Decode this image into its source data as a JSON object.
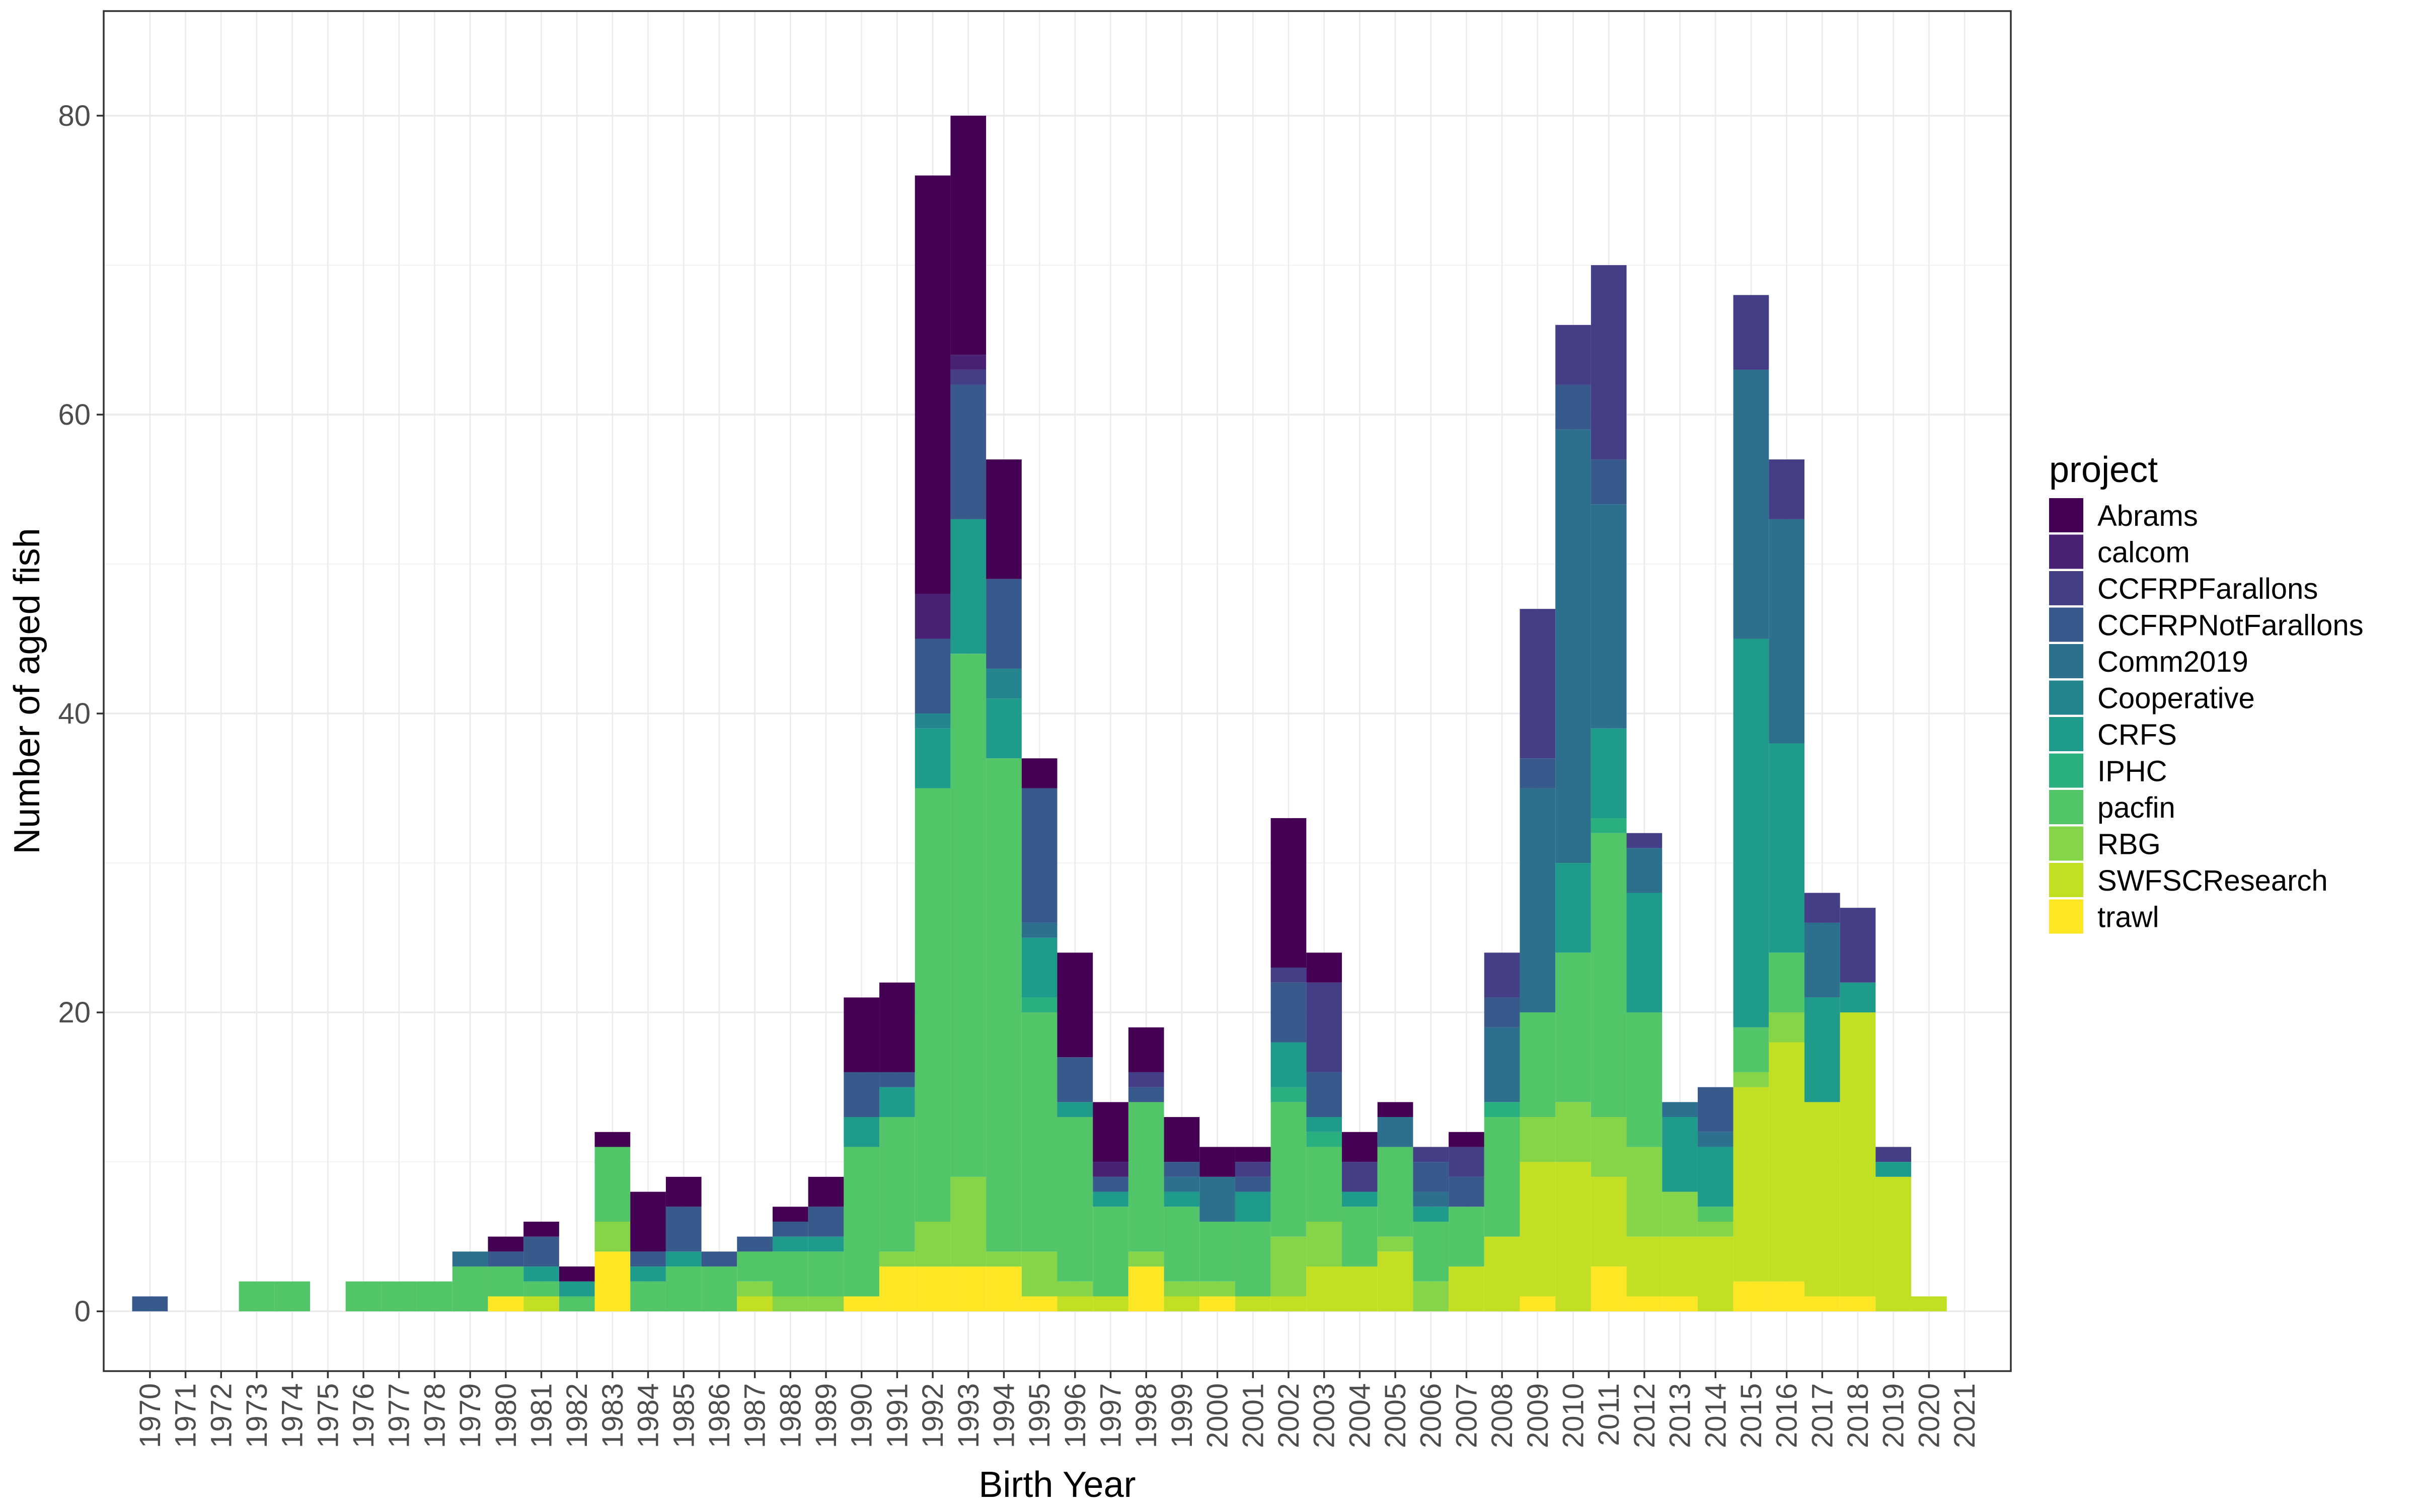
{
  "chart_data": {
    "type": "bar",
    "stacked": true,
    "xlabel": "Birth Year",
    "ylabel": "Number of aged fish",
    "ylim": [
      -4,
      87
    ],
    "yticks": [
      0,
      20,
      40,
      60,
      80
    ],
    "grid": true,
    "legend_title": "project",
    "legend_position": "right",
    "categories": [
      "1970",
      "1971",
      "1972",
      "1973",
      "1974",
      "1975",
      "1976",
      "1977",
      "1978",
      "1979",
      "1980",
      "1981",
      "1982",
      "1983",
      "1984",
      "1985",
      "1986",
      "1987",
      "1988",
      "1989",
      "1990",
      "1991",
      "1992",
      "1993",
      "1994",
      "1995",
      "1996",
      "1997",
      "1998",
      "1999",
      "2000",
      "2001",
      "2002",
      "2003",
      "2004",
      "2005",
      "2006",
      "2007",
      "2008",
      "2009",
      "2010",
      "2011",
      "2012",
      "2013",
      "2014",
      "2015",
      "2016",
      "2017",
      "2018",
      "2019",
      "2020",
      "2021"
    ],
    "series": [
      {
        "name": "trawl",
        "color": "#FDE725",
        "values": [
          0,
          0,
          0,
          0,
          0,
          0,
          0,
          0,
          0,
          0,
          1,
          0,
          0,
          4,
          0,
          0,
          0,
          0,
          0,
          0,
          1,
          3,
          3,
          3,
          3,
          1,
          0,
          0,
          3,
          0,
          1,
          0,
          0,
          0,
          0,
          0,
          0,
          0,
          0,
          1,
          0,
          3,
          1,
          1,
          0,
          2,
          2,
          1,
          1,
          0,
          0,
          0
        ]
      },
      {
        "name": "SWFSCResearch",
        "color": "#C2DF23",
        "values": [
          0,
          0,
          0,
          0,
          0,
          0,
          0,
          0,
          0,
          0,
          0,
          1,
          0,
          0,
          0,
          0,
          0,
          1,
          0,
          0,
          0,
          0,
          0,
          0,
          0,
          0,
          1,
          1,
          0,
          1,
          0,
          1,
          1,
          3,
          3,
          4,
          0,
          3,
          5,
          9,
          10,
          6,
          4,
          4,
          5,
          13,
          16,
          13,
          19,
          9,
          1,
          0
        ]
      },
      {
        "name": "RBG",
        "color": "#86D549",
        "values": [
          0,
          0,
          0,
          0,
          0,
          0,
          0,
          0,
          0,
          0,
          0,
          0,
          0,
          2,
          0,
          0,
          0,
          1,
          1,
          1,
          0,
          1,
          3,
          6,
          1,
          3,
          1,
          0,
          1,
          1,
          1,
          0,
          4,
          3,
          0,
          1,
          2,
          0,
          0,
          3,
          4,
          4,
          6,
          3,
          1,
          1,
          2,
          0,
          0,
          0,
          0,
          0
        ]
      },
      {
        "name": "pacfin",
        "color": "#52C569",
        "values": [
          0,
          0,
          0,
          2,
          2,
          0,
          2,
          2,
          2,
          3,
          2,
          1,
          1,
          5,
          2,
          3,
          3,
          2,
          3,
          3,
          10,
          9,
          29,
          35,
          33,
          16,
          11,
          6,
          10,
          5,
          4,
          5,
          9,
          5,
          4,
          6,
          4,
          4,
          8,
          7,
          10,
          19,
          9,
          0,
          1,
          3,
          4,
          0,
          0,
          0,
          0,
          0
        ]
      },
      {
        "name": "IPHC",
        "color": "#2AB07F",
        "values": [
          0,
          0,
          0,
          0,
          0,
          0,
          0,
          0,
          0,
          0,
          0,
          0,
          0,
          0,
          0,
          0,
          0,
          0,
          0,
          0,
          0,
          0,
          0,
          0,
          0,
          1,
          0,
          0,
          0,
          0,
          0,
          0,
          1,
          1,
          0,
          0,
          0,
          0,
          1,
          0,
          0,
          1,
          0,
          0,
          0,
          0,
          0,
          0,
          0,
          0,
          0,
          0
        ]
      },
      {
        "name": "CRFS",
        "color": "#1E9B8A",
        "values": [
          0,
          0,
          0,
          0,
          0,
          0,
          0,
          0,
          0,
          0,
          0,
          1,
          1,
          0,
          1,
          1,
          0,
          0,
          1,
          1,
          2,
          2,
          4,
          9,
          4,
          4,
          1,
          1,
          0,
          1,
          0,
          2,
          3,
          1,
          1,
          0,
          1,
          0,
          0,
          0,
          6,
          6,
          8,
          5,
          4,
          26,
          14,
          7,
          2,
          1,
          0,
          0
        ]
      },
      {
        "name": "Cooperative",
        "color": "#25858E",
        "values": [
          0,
          0,
          0,
          0,
          0,
          0,
          0,
          0,
          0,
          0,
          0,
          0,
          0,
          0,
          0,
          0,
          0,
          0,
          0,
          0,
          0,
          0,
          1,
          0,
          2,
          0,
          0,
          0,
          0,
          0,
          0,
          0,
          0,
          0,
          0,
          0,
          0,
          0,
          0,
          0,
          0,
          0,
          0,
          0,
          0,
          0,
          0,
          0,
          0,
          0,
          0,
          0
        ]
      },
      {
        "name": "Comm2019",
        "color": "#2D708E",
        "values": [
          0,
          0,
          0,
          0,
          0,
          0,
          0,
          0,
          0,
          1,
          0,
          0,
          0,
          0,
          0,
          0,
          0,
          0,
          0,
          0,
          0,
          0,
          0,
          0,
          0,
          1,
          0,
          0,
          0,
          1,
          3,
          0,
          0,
          0,
          0,
          2,
          1,
          0,
          5,
          15,
          29,
          15,
          3,
          1,
          1,
          18,
          15,
          5,
          0,
          0,
          0,
          0
        ]
      },
      {
        "name": "CCFRPNotFarallons",
        "color": "#38598C",
        "values": [
          1,
          0,
          0,
          0,
          0,
          0,
          0,
          0,
          0,
          0,
          1,
          2,
          0,
          0,
          1,
          3,
          1,
          1,
          1,
          2,
          3,
          1,
          5,
          9,
          6,
          9,
          3,
          1,
          1,
          1,
          0,
          1,
          4,
          3,
          0,
          0,
          2,
          2,
          2,
          2,
          3,
          3,
          0,
          0,
          3,
          0,
          0,
          0,
          0,
          0,
          0,
          0
        ]
      },
      {
        "name": "CCFRPFarallons",
        "color": "#433E85",
        "values": [
          0,
          0,
          0,
          0,
          0,
          0,
          0,
          0,
          0,
          0,
          0,
          0,
          0,
          0,
          0,
          0,
          0,
          0,
          0,
          0,
          0,
          0,
          0,
          1,
          0,
          0,
          0,
          0,
          1,
          0,
          0,
          1,
          1,
          6,
          2,
          0,
          1,
          2,
          3,
          10,
          4,
          13,
          1,
          0,
          0,
          5,
          4,
          2,
          5,
          1,
          0,
          0
        ]
      },
      {
        "name": "calcom",
        "color": "#482173",
        "values": [
          0,
          0,
          0,
          0,
          0,
          0,
          0,
          0,
          0,
          0,
          0,
          0,
          0,
          0,
          0,
          0,
          0,
          0,
          0,
          0,
          0,
          0,
          3,
          1,
          0,
          0,
          0,
          1,
          0,
          0,
          0,
          0,
          0,
          0,
          0,
          0,
          0,
          0,
          0,
          0,
          0,
          0,
          0,
          0,
          0,
          0,
          0,
          0,
          0,
          0,
          0,
          0
        ]
      },
      {
        "name": "Abrams",
        "color": "#440154",
        "values": [
          0,
          0,
          0,
          0,
          0,
          0,
          0,
          0,
          0,
          0,
          1,
          1,
          1,
          1,
          4,
          2,
          0,
          0,
          1,
          2,
          5,
          6,
          28,
          16,
          8,
          2,
          7,
          4,
          3,
          3,
          2,
          1,
          10,
          2,
          2,
          1,
          0,
          1,
          0,
          0,
          0,
          0,
          0,
          0,
          0,
          0,
          0,
          0,
          0,
          0,
          0,
          0
        ]
      }
    ]
  }
}
